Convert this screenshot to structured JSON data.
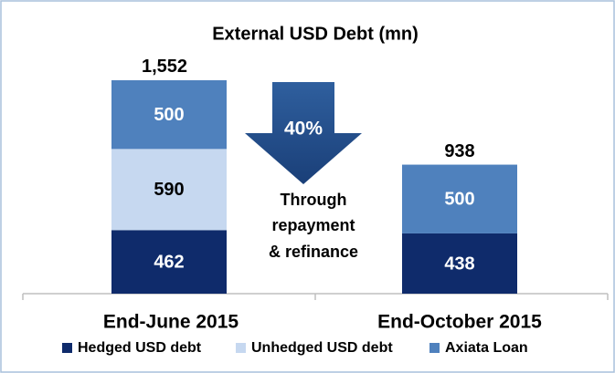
{
  "chart_data": {
    "type": "stacked_bar",
    "title": "External USD Debt (mn)",
    "categories": [
      "End-June 2015",
      "End-October 2015"
    ],
    "series": [
      {
        "name": "Hedged USD debt",
        "color": "#0f2b6b",
        "values": [
          462,
          438
        ]
      },
      {
        "name": "Unhedged USD debt",
        "color": "#c6d8f0",
        "values": [
          590,
          null
        ]
      },
      {
        "name": "Axiata Loan",
        "color": "#4f81bd",
        "values": [
          500,
          500
        ]
      }
    ],
    "totals": [
      1552,
      938
    ],
    "total_value_labels": [
      "1,552",
      "938"
    ],
    "annotations": {
      "arrow_label": "40%",
      "note": [
        "Through",
        "repayment",
        "& refinance"
      ]
    },
    "legend": "bottom"
  }
}
